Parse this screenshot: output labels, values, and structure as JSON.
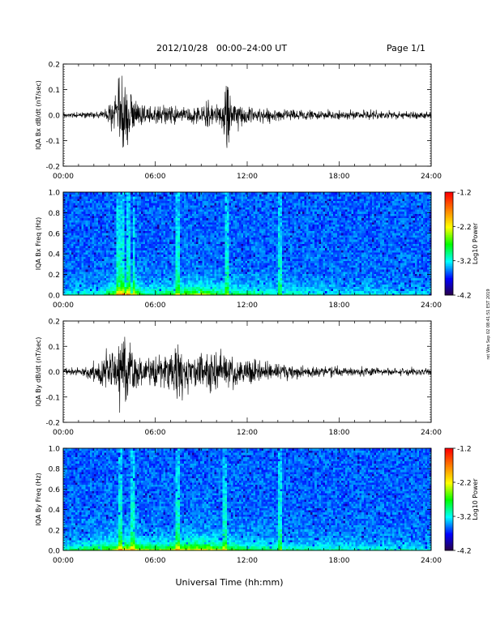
{
  "header": {
    "title": "2012/10/28   00:00–24:00 UT",
    "page": "Page 1/1"
  },
  "footer": {
    "xlabel": "Universal Time (hh:mm)",
    "side_stamp": "ret Wes Sep 02 08:41:51 EST 2019"
  },
  "colors": {
    "trace": "#000000",
    "spectrogram_background": "#1f2fd0",
    "colormap": [
      "#2a0040",
      "#0000ff",
      "#00ffff",
      "#00ff00",
      "#ffff00",
      "#ff8000",
      "#ff0000"
    ]
  },
  "chart_data": [
    {
      "type": "line",
      "ylabel": "IQA Bx dB/dt (nT/sec)",
      "xlim": [
        0,
        24
      ],
      "ylim": [
        -0.2,
        0.2
      ],
      "xticks": [
        "00:00",
        "06:00",
        "12:00",
        "18:00",
        "24:00"
      ],
      "yticks": [
        "0.2",
        "0.1",
        "0.0",
        "-0.1",
        "-0.2"
      ],
      "ytick_values": [
        0.2,
        0.1,
        0.0,
        -0.1,
        -0.2
      ],
      "envelope": {
        "x_hours": [
          0,
          2.5,
          3.3,
          3.6,
          3.8,
          4.0,
          4.3,
          4.6,
          5.0,
          5.5,
          6.0,
          7.0,
          8.0,
          9.0,
          10.0,
          10.5,
          10.7,
          11.0,
          12.0,
          13.0,
          14.0,
          15.0,
          18.0,
          24.0
        ],
        "amplitude": [
          0.012,
          0.015,
          0.07,
          0.18,
          0.2,
          0.2,
          0.15,
          0.08,
          0.05,
          0.04,
          0.04,
          0.045,
          0.045,
          0.05,
          0.06,
          0.1,
          0.2,
          0.07,
          0.04,
          0.035,
          0.03,
          0.025,
          0.02,
          0.018
        ]
      }
    },
    {
      "type": "heatmap",
      "ylabel": "IQA Bx Freq (Hz)",
      "xlim": [
        0,
        24
      ],
      "ylim": [
        0,
        1
      ],
      "xticks": [
        "00:00",
        "06:00",
        "12:00",
        "18:00",
        "24:00"
      ],
      "yticks": [
        "1.0",
        "0.8",
        "0.6",
        "0.4",
        "0.2",
        "0.0"
      ],
      "ytick_values": [
        1.0,
        0.8,
        0.6,
        0.4,
        0.2,
        0.0
      ],
      "colorbar": {
        "label": "Log10 Power",
        "range": [
          -4.2,
          -1.2
        ],
        "ticks": [
          "-1.2",
          "-2.2",
          "-3.2",
          "-4.2"
        ],
        "tick_values": [
          -1.2,
          -2.2,
          -3.2,
          -4.2
        ]
      },
      "low_freq_activity": {
        "x_hours": [
          0,
          2.5,
          3.5,
          4.0,
          4.8,
          5.5,
          7.5,
          9.0,
          9.5,
          10.5,
          12.0,
          14.0,
          16.0,
          20.0,
          24.0
        ],
        "level": [
          0.2,
          0.25,
          0.7,
          0.9,
          0.6,
          0.35,
          0.5,
          0.7,
          0.6,
          0.45,
          0.4,
          0.3,
          0.25,
          0.2,
          0.15
        ]
      },
      "vertical_streaks_hours": [
        3.6,
        3.9,
        4.3,
        4.6,
        7.5,
        10.7,
        14.1
      ]
    },
    {
      "type": "line",
      "ylabel": "IQA By dB/dt (nT/sec)",
      "xlim": [
        0,
        24
      ],
      "ylim": [
        -0.2,
        0.2
      ],
      "xticks": [
        "00:00",
        "06:00",
        "12:00",
        "18:00",
        "24:00"
      ],
      "yticks": [
        "0.2",
        "0.1",
        "0.0",
        "-0.1",
        "-0.2"
      ],
      "ytick_values": [
        0.2,
        0.1,
        0.0,
        -0.1,
        -0.2
      ],
      "envelope": {
        "x_hours": [
          0,
          1.0,
          2.0,
          2.8,
          3.3,
          3.7,
          4.0,
          4.3,
          4.8,
          5.3,
          6.0,
          7.0,
          7.5,
          8.0,
          9.0,
          10.0,
          11.0,
          12.0,
          13.0,
          14.0,
          15.0,
          18.0,
          24.0
        ],
        "amplitude": [
          0.012,
          0.02,
          0.04,
          0.08,
          0.12,
          0.2,
          0.2,
          0.15,
          0.1,
          0.07,
          0.07,
          0.08,
          0.17,
          0.08,
          0.09,
          0.1,
          0.07,
          0.06,
          0.05,
          0.04,
          0.03,
          0.02,
          0.018
        ]
      }
    },
    {
      "type": "heatmap",
      "ylabel": "IQA By Freq (Hz)",
      "xlim": [
        0,
        24
      ],
      "ylim": [
        0,
        1
      ],
      "xticks": [
        "00:00",
        "06:00",
        "12:00",
        "18:00",
        "24:00"
      ],
      "yticks": [
        "1.0",
        "0.8",
        "0.6",
        "0.4",
        "0.2",
        "0.0"
      ],
      "ytick_values": [
        1.0,
        0.8,
        0.6,
        0.4,
        0.2,
        0.0
      ],
      "colorbar": {
        "label": "Log10 Power",
        "range": [
          -4.2,
          -1.2
        ],
        "ticks": [
          "-1.2",
          "-2.2",
          "-3.2",
          "-4.2"
        ],
        "tick_values": [
          -1.2,
          -2.2,
          -3.2,
          -4.2
        ]
      },
      "low_freq_activity": {
        "x_hours": [
          0,
          1.5,
          2.5,
          3.5,
          4.0,
          5.0,
          6.0,
          7.0,
          7.5,
          9.0,
          9.5,
          10.5,
          12.0,
          14.0,
          16.0,
          20.0,
          24.0
        ],
        "level": [
          0.25,
          0.45,
          0.5,
          0.7,
          0.85,
          0.65,
          0.6,
          0.6,
          0.7,
          0.8,
          0.75,
          0.55,
          0.45,
          0.35,
          0.3,
          0.25,
          0.2
        ]
      },
      "vertical_streaks_hours": [
        3.7,
        4.5,
        7.5,
        10.5,
        14.1
      ]
    }
  ]
}
